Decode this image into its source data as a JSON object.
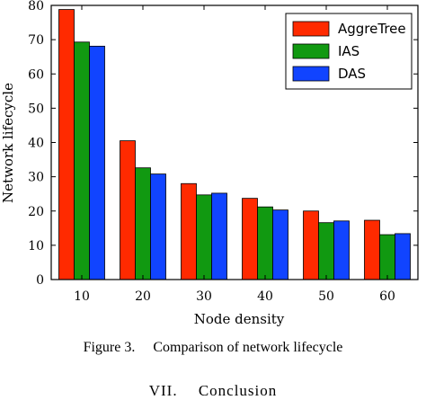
{
  "chart_data": {
    "type": "bar",
    "categories": [
      "10",
      "20",
      "30",
      "40",
      "50",
      "60"
    ],
    "series": [
      {
        "name": "AggreTree",
        "color": "#ff2a00",
        "values": [
          78.8,
          40.5,
          28.0,
          23.7,
          20.0,
          17.3
        ]
      },
      {
        "name": "IAS",
        "color": "#119911",
        "values": [
          69.3,
          32.6,
          24.7,
          21.2,
          16.6,
          13.1
        ]
      },
      {
        "name": "DAS",
        "color": "#1144ff",
        "values": [
          68.1,
          30.8,
          25.2,
          20.3,
          17.1,
          13.4
        ]
      }
    ],
    "xlabel": "Node density",
    "ylabel": "Network lifecycle",
    "ylim": [
      0,
      80
    ],
    "yticks": [
      "0",
      "10",
      "20",
      "30",
      "40",
      "50",
      "60",
      "70",
      "80"
    ],
    "legend_position": "top-right",
    "grid": false
  },
  "caption": "Figure 3.  Comparison of network lifecycle",
  "next_section_heading": "VII.  Conclusion"
}
